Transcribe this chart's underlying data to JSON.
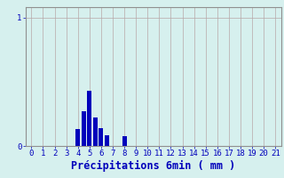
{
  "xlabel": "Précipitations 6min ( mm )",
  "xlim": [
    -0.5,
    21.5
  ],
  "ylim": [
    0,
    1.08
  ],
  "yticks": [
    0,
    1
  ],
  "ytick_labels": [
    "0",
    "1"
  ],
  "xticks": [
    0,
    1,
    2,
    3,
    4,
    5,
    6,
    7,
    8,
    9,
    10,
    11,
    12,
    13,
    14,
    15,
    16,
    17,
    18,
    19,
    20,
    21
  ],
  "bar_positions": [
    4,
    4.5,
    5,
    5.5,
    6,
    6.5,
    8
  ],
  "bar_heights": [
    0.13,
    0.27,
    0.43,
    0.22,
    0.14,
    0.08,
    0.075
  ],
  "bar_width": 0.38,
  "bar_color": "#0000bb",
  "bg_color": "#d6f0ee",
  "grid_color": "#b8a8a8",
  "tick_color": "#0000bb",
  "label_color": "#0000bb",
  "spine_color": "#909090",
  "xlabel_fontsize": 8.5,
  "tick_fontsize": 6.5
}
